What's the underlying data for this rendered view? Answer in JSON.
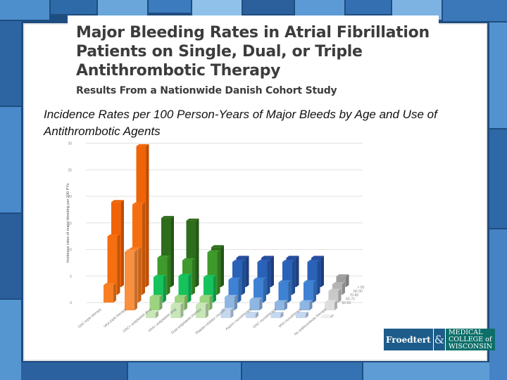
{
  "slide": {
    "title": "Major Bleeding Rates in Atrial Fibrillation Patients on Single, Dual, or Triple Antithrombotic Therapy",
    "subtitle": "Results From a Nationwide Danish Cohort Study",
    "caption": "Incidence Rates per 100 Person-Years of Major Bleeds by Age and Use of Antithrombotic Agents"
  },
  "logo": {
    "left": "Froedtert",
    "amp": "&",
    "right_line1": "MEDICAL",
    "right_line2": "COLLEGE of",
    "right_line3": "WISCONSIN"
  },
  "chart_data": {
    "type": "bar",
    "ylabel": "Incidence rates of major bleeding per 100 PYs",
    "ylim": [
      0,
      30
    ],
    "yticks": [
      "0",
      "5",
      "10",
      "15",
      "20",
      "25",
      "30"
    ],
    "grid": true,
    "categories": [
      "OAC triple therapy",
      "VKA triple therapy",
      "OAC+ antiplatelet drug",
      "VKA+ antiplatelet drug",
      "Dual antiplatelet therapy",
      "Platelet inhibitor monoth.",
      "Aspirin monotherapy",
      "OAC monotherapy",
      "VKA monotherapy",
      "No antithrombotic therapy"
    ],
    "series": [
      {
        "name": "50-60",
        "values": [
          0,
          0,
          1,
          2.5,
          2.5,
          1.5,
          0.8,
          0.8,
          0.8,
          0.3
        ]
      },
      {
        "name": "60-70",
        "values": [
          0,
          11,
          2.5,
          2.5,
          2.5,
          2.5,
          2,
          1.5,
          1.5,
          1.5
        ]
      },
      {
        "name": "70-80",
        "values": [
          3.3,
          10,
          4.8,
          5,
          4.8,
          4.3,
          4.3,
          3.8,
          3.8,
          2.2
        ]
      },
      {
        "name": "80-90",
        "values": [
          11,
          17,
          7,
          6.5,
          8,
          6.2,
          6.2,
          6.2,
          6.2,
          2
        ]
      },
      {
        "name": "> 90",
        "values": [
          16,
          26.5,
          13,
          12.5,
          7.5,
          5.5,
          5.5,
          5.5,
          5.5,
          2
        ]
      }
    ],
    "legend": "right",
    "colors": {
      "orange": [
        "#f7b08a",
        "#f99040",
        "#f97f24",
        "#f56e10",
        "#ef6406"
      ],
      "green": [
        "#c8e6b8",
        "#9cd37e",
        "#16c25c",
        "#3f9a2c",
        "#2e6d1c"
      ],
      "blue": [
        "#c4d8ef",
        "#8fb6e2",
        "#3f82d4",
        "#2a62b8",
        "#274e9e"
      ],
      "gray": [
        "#eeeeee",
        "#dedede",
        "#c9c9c9",
        "#b4b4b4",
        "#9e9e9e"
      ]
    }
  }
}
